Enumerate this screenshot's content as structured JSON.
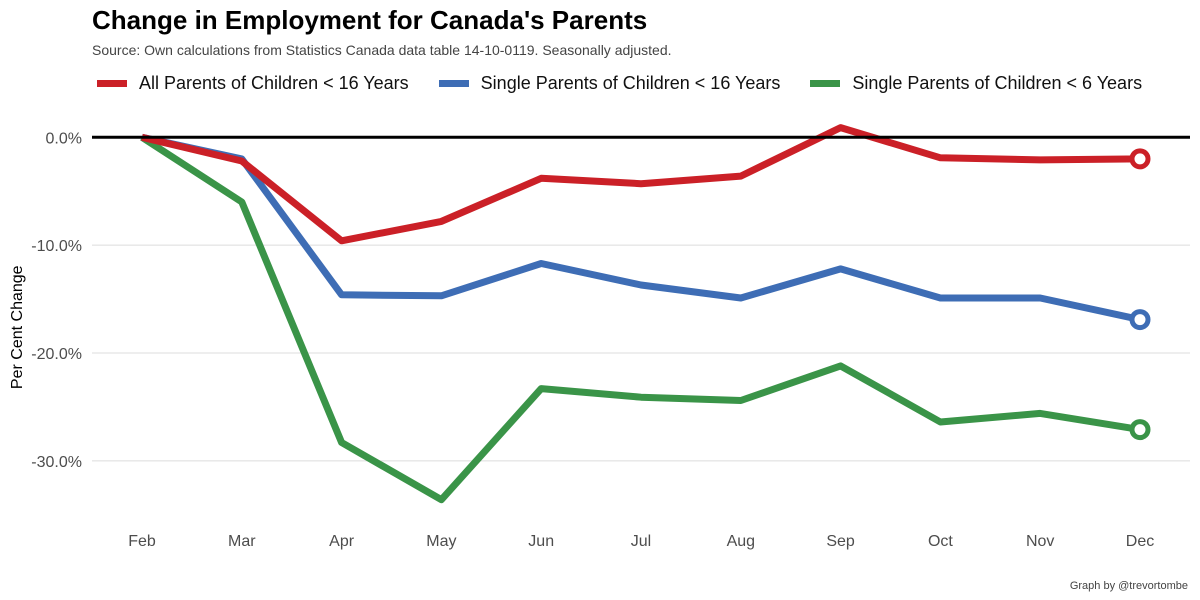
{
  "title": "Change in Employment for Canada's Parents",
  "subtitle": "Source: Own calculations from Statistics Canada data table 14-10-0119. Seasonally adjusted.",
  "caption": "Graph by @trevortombe",
  "chart_data": {
    "type": "line",
    "title": "Change in Employment for Canada's Parents",
    "subtitle": "Source: Own calculations from Statistics Canada data table 14-10-0119. Seasonally adjusted.",
    "xlabel": "",
    "ylabel": "Per Cent Change",
    "categories": [
      "Feb",
      "Mar",
      "Apr",
      "May",
      "Jun",
      "Jul",
      "Aug",
      "Sep",
      "Oct",
      "Nov",
      "Dec"
    ],
    "ylim": [
      -34,
      1
    ],
    "yticks": [
      0,
      -10,
      -20,
      -30
    ],
    "ytick_labels": [
      "0.0%",
      "-10.0%",
      "-20.0%",
      "-30.0%"
    ],
    "grid": "horizontal",
    "zero_line": true,
    "legend_position": "top",
    "end_markers": true,
    "series": [
      {
        "name": "All Parents of Children < 16 Years",
        "color": "#cb2027",
        "values": [
          0,
          -2.2,
          -9.6,
          -7.8,
          -3.8,
          -4.3,
          -3.6,
          0.9,
          -1.9,
          -2.1,
          -2.0
        ]
      },
      {
        "name": "Single Parents of Children < 16 Years",
        "color": "#3e6db5",
        "values": [
          0,
          -2.0,
          -14.6,
          -14.7,
          -11.7,
          -13.7,
          -14.9,
          -12.2,
          -14.9,
          -14.9,
          -16.9
        ]
      },
      {
        "name": "Single Parents of Children < 6 Years",
        "color": "#3a9448",
        "values": [
          0,
          -6.0,
          -28.3,
          -33.6,
          -23.3,
          -24.1,
          -24.4,
          -21.2,
          -26.4,
          -25.6,
          -27.1
        ]
      }
    ]
  }
}
